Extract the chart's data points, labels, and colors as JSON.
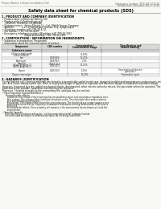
{
  "bg_color": "#f8f8f5",
  "header_left": "Product Name: Lithium Ion Battery Cell",
  "header_right_line1": "Substance number: SDS-LIB-000010",
  "header_right_line2": "Established / Revision: Dec.7.2010",
  "title": "Safety data sheet for chemical products (SDS)",
  "section1_title": "1. PRODUCT AND COMPANY IDENTIFICATION",
  "section1_lines": [
    "• Product name: Lithium Ion Battery Cell",
    "• Product code: Cylindrical-type cell",
    "   (UR18650, UR18650L, UR18650A)",
    "• Company name:   Sanyo Electric Co., Ltd., Mobile Energy Company",
    "• Address:           2-27-1, Kamiohjaku, Sumoto City, Hyogo, Japan",
    "• Telephone number: +81-799-26-4111",
    "• Fax number: +81-799-26-4129",
    "• Emergency telephone number (Weekday) +81-799-26-3562",
    "                               (Night and holiday) +81-799-26-3101"
  ],
  "section2_title": "2. COMPOSITION / INFORMATION ON INGREDIENTS",
  "section2_intro": "• Substance or preparation: Preparation",
  "section2_sub": "• Information about the chemical nature of product:",
  "table_headers": [
    "Component",
    "CAS number",
    "Concentration /\nConcentration range",
    "Classification and\nhazard labeling"
  ],
  "table_rows": [
    [
      "Lithium cobalt oxide\n(LiMnxCoxNiO2)",
      "-",
      "30-50%",
      "-"
    ],
    [
      "Iron",
      "7439-89-6",
      "15-25%",
      "-"
    ],
    [
      "Aluminum",
      "7429-90-5",
      "2-5%",
      "-"
    ],
    [
      "Graphite\n(Black graphite-1)\n(Al-Mo graphite-1)",
      "77583-42-5\n7782-42-5",
      "10-25%",
      "-"
    ],
    [
      "Copper",
      "7440-50-8",
      "5-15%",
      "Sensitization of the skin\ngroup No.2"
    ],
    [
      "Organic electrolyte",
      "-",
      "10-20%",
      "Flammable liquid"
    ]
  ],
  "section3_title": "3. HAZARDS IDENTIFICATION",
  "section3_para1": "For this battery cell, chemical materials are stored in a hermetically sealed metal case, designed to withstand temperatures and pressures encountered during normal use. As a result, during normal use, there is no physical danger of ignition or explosion and therefore danger of hazardous materials leakage.",
  "section3_para2": "However, if exposed to a fire, added mechanical shocks, decomposed, when electric action by misuse, the gas inside cannot be operated. The battery cell case will be breached at fire possible, hazardous materials may be released.",
  "section3_para3": "Moreover, if heated strongly by the surrounding fire, solid gas may be emitted.",
  "section3_bullet1": "• Most important hazard and effects:",
  "section3_human": "  Human health effects:",
  "section3_human_lines": [
    "     Inhalation: The release of the electrolyte has an anesthesia action and stimulates a respiratory tract.",
    "     Skin contact: The release of the electrolyte stimulates a skin. The electrolyte skin contact causes a",
    "     sore and stimulation on the skin.",
    "     Eye contact: The release of the electrolyte stimulates eyes. The electrolyte eye contact causes a sore",
    "     and stimulation on the eye. Especially, a substance that causes a strong inflammation of the eyes is",
    "     contained.",
    "     Environmental effects: Since a battery cell remains in the environment, do not throw out it into the",
    "     environment."
  ],
  "section3_specific": "• Specific hazards:",
  "section3_specific_lines": [
    "  If the electrolyte contacts with water, it will generate detrimental hydrogen fluoride.",
    "  Since the used electrolyte is inflammatory liquid, do not bring close to fire."
  ]
}
